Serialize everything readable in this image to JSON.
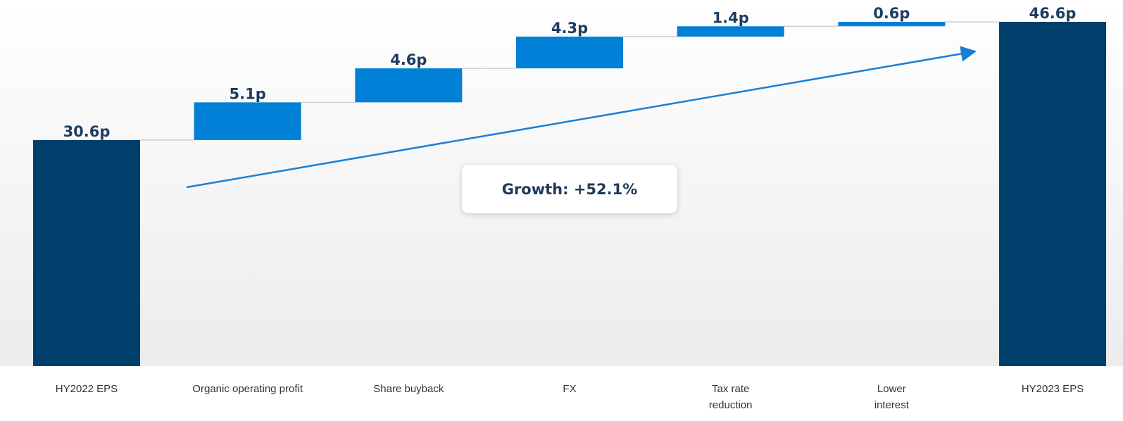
{
  "chart_data": {
    "type": "waterfall",
    "categories": [
      [
        "HY2022 EPS"
      ],
      [
        "Organic operating profit"
      ],
      [
        "Share buyback"
      ],
      [
        "FX"
      ],
      [
        "Tax rate",
        "reduction"
      ],
      [
        "Lower",
        "interest"
      ],
      [
        "HY2023 EPS"
      ]
    ],
    "values": [
      30.6,
      5.1,
      4.6,
      4.3,
      1.4,
      0.6,
      46.6
    ],
    "value_labels": [
      "30.6p",
      "5.1p",
      "4.6p",
      "4.3p",
      "1.4p",
      "0.6p",
      "46.6p"
    ],
    "colors": [
      "#003f6b",
      "#0080d6",
      "#0080d6",
      "#0080d6",
      "#0080d6",
      "#0080d6",
      "#003f6b"
    ],
    "annotation": "Growth: +52.1%"
  }
}
